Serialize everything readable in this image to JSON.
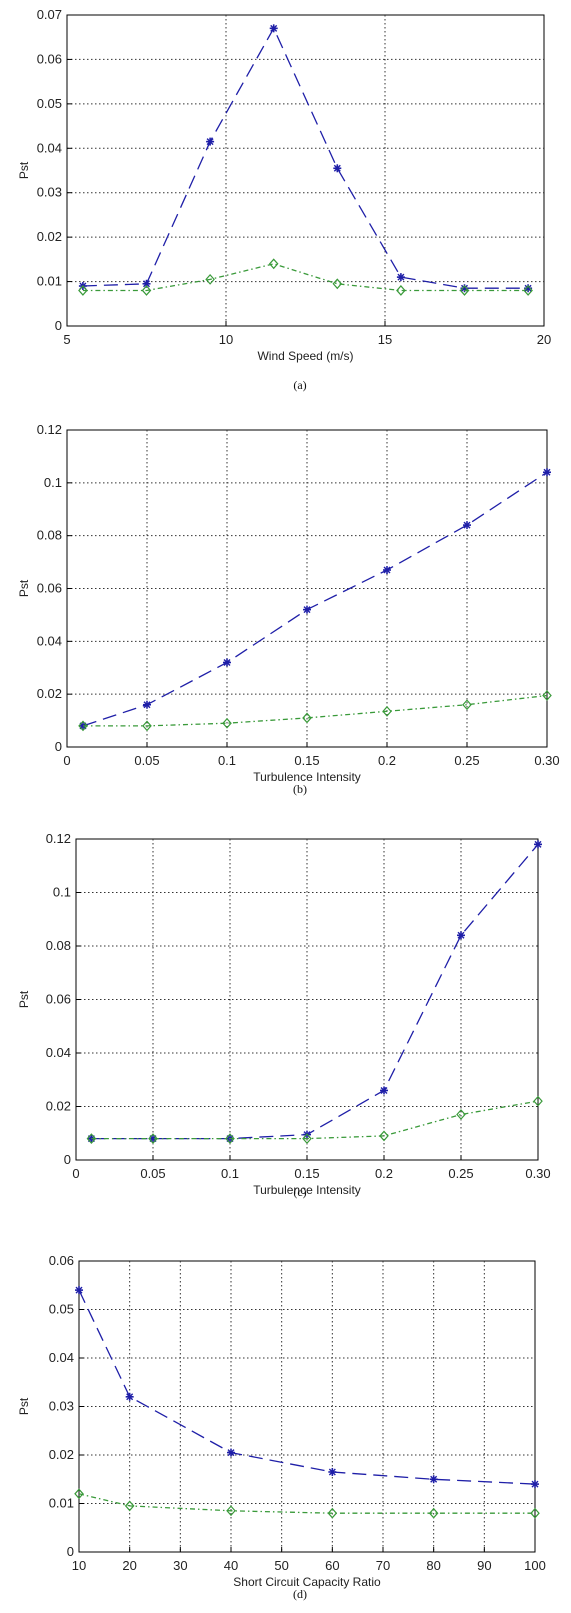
{
  "chart_data": [
    {
      "type": "line",
      "panel": "a",
      "caption": "(a)",
      "xlabel": "Wind Speed (m/s)",
      "ylabel": "Pst",
      "xlim": [
        5,
        20
      ],
      "ylim": [
        0,
        0.07
      ],
      "xticks": [
        5,
        10,
        15,
        20
      ],
      "xtick_labels": [
        "5",
        "10",
        "15",
        "20"
      ],
      "yticks": [
        0,
        0.01,
        0.02,
        0.03,
        0.04,
        0.05,
        0.06,
        0.07
      ],
      "ytick_labels": [
        "0",
        "0.01",
        "0.02",
        "0.03",
        "0.04",
        "0.05",
        "0.06",
        "0.07"
      ],
      "grid": true,
      "series": [
        {
          "color": "#1f1fa8",
          "marker": "star",
          "dash": "14,7",
          "x": [
            5.5,
            7.5,
            9.5,
            11.5,
            13.5,
            15.5,
            17.5,
            19.5
          ],
          "y": [
            0.009,
            0.0095,
            0.0415,
            0.067,
            0.0355,
            0.011,
            0.0085,
            0.0085
          ]
        },
        {
          "color": "#3a9a3a",
          "marker": "diamond",
          "dash": "5,3,1.5,3",
          "x": [
            5.5,
            7.5,
            9.5,
            11.5,
            13.5,
            15.5,
            17.5,
            19.5
          ],
          "y": [
            0.008,
            0.008,
            0.0105,
            0.014,
            0.0095,
            0.008,
            0.008,
            0.008
          ]
        }
      ]
    },
    {
      "type": "line",
      "panel": "b",
      "caption": "(b)",
      "xlabel": "Turbulence Intensity",
      "ylabel": "Pst",
      "xlim": [
        0,
        0.3
      ],
      "ylim": [
        0,
        0.12
      ],
      "xticks": [
        0,
        0.05,
        0.1,
        0.15,
        0.2,
        0.25,
        0.3
      ],
      "xtick_labels": [
        "0",
        "0.05",
        "0.1",
        "0.15",
        "0.2",
        "0.25",
        "0.30"
      ],
      "yticks": [
        0,
        0.02,
        0.04,
        0.06,
        0.08,
        0.1,
        0.12
      ],
      "ytick_labels": [
        "0",
        "0.02",
        "0.04",
        "0.06",
        "0.08",
        "0.1",
        "0.12"
      ],
      "grid": true,
      "series": [
        {
          "color": "#1f1fa8",
          "marker": "star",
          "dash": "14,7",
          "x": [
            0.01,
            0.05,
            0.1,
            0.15,
            0.2,
            0.25,
            0.3
          ],
          "y": [
            0.008,
            0.016,
            0.032,
            0.052,
            0.067,
            0.084,
            0.104
          ]
        },
        {
          "color": "#3a9a3a",
          "marker": "diamond",
          "dash": "5,3,1.5,3",
          "x": [
            0.01,
            0.05,
            0.1,
            0.15,
            0.2,
            0.25,
            0.3
          ],
          "y": [
            0.008,
            0.008,
            0.009,
            0.011,
            0.0135,
            0.016,
            0.0195
          ]
        }
      ]
    },
    {
      "type": "line",
      "panel": "c",
      "caption": "(c)",
      "xlabel": "Turbulence Intensity",
      "ylabel": "Pst",
      "xlim": [
        0,
        0.3
      ],
      "ylim": [
        0,
        0.12
      ],
      "xticks": [
        0,
        0.05,
        0.1,
        0.15,
        0.2,
        0.25,
        0.3
      ],
      "xtick_labels": [
        "0",
        "0.05",
        "0.1",
        "0.15",
        "0.2",
        "0.25",
        "0.30"
      ],
      "yticks": [
        0,
        0.02,
        0.04,
        0.06,
        0.08,
        0.1,
        0.12
      ],
      "ytick_labels": [
        "0",
        "0.02",
        "0.04",
        "0.06",
        "0.08",
        "0.1",
        "0.12"
      ],
      "grid": true,
      "series": [
        {
          "color": "#1f1fa8",
          "marker": "star",
          "dash": "14,7",
          "x": [
            0.01,
            0.05,
            0.1,
            0.15,
            0.2,
            0.25,
            0.3
          ],
          "y": [
            0.008,
            0.008,
            0.008,
            0.0095,
            0.026,
            0.084,
            0.118
          ]
        },
        {
          "color": "#3a9a3a",
          "marker": "diamond",
          "dash": "5,3,1.5,3",
          "x": [
            0.01,
            0.05,
            0.1,
            0.15,
            0.2,
            0.25,
            0.3
          ],
          "y": [
            0.008,
            0.008,
            0.008,
            0.008,
            0.009,
            0.017,
            0.022
          ]
        }
      ]
    },
    {
      "type": "line",
      "panel": "d",
      "caption": "(d)",
      "xlabel": "Short Circuit Capacity Ratio",
      "ylabel": "Pst",
      "xlim": [
        10,
        100
      ],
      "ylim": [
        0,
        0.06
      ],
      "xticks": [
        10,
        20,
        30,
        40,
        50,
        60,
        70,
        80,
        90,
        100
      ],
      "xtick_labels": [
        "10",
        "20",
        "30",
        "40",
        "50",
        "60",
        "70",
        "80",
        "90",
        "100"
      ],
      "yticks": [
        0,
        0.01,
        0.02,
        0.03,
        0.04,
        0.05,
        0.06
      ],
      "ytick_labels": [
        "0",
        "0.01",
        "0.02",
        "0.03",
        "0.04",
        "0.05",
        "0.06"
      ],
      "grid": true,
      "series": [
        {
          "color": "#1f1fa8",
          "marker": "star",
          "dash": "14,7",
          "x": [
            10,
            20,
            40,
            60,
            80,
            100
          ],
          "y": [
            0.054,
            0.032,
            0.0205,
            0.0165,
            0.015,
            0.014
          ]
        },
        {
          "color": "#3a9a3a",
          "marker": "diamond",
          "dash": "5,3,1.5,3",
          "x": [
            10,
            20,
            40,
            60,
            80,
            100
          ],
          "y": [
            0.012,
            0.0095,
            0.0085,
            0.008,
            0.008,
            0.008
          ]
        }
      ]
    }
  ]
}
